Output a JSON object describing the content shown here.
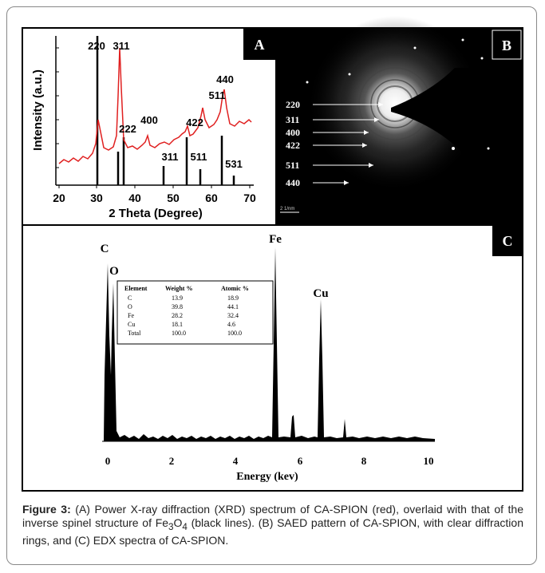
{
  "figure": {
    "panel_a": {
      "label": "A",
      "y_label": "Intensity (a.u.)",
      "x_label": "2 Theta (Degree)",
      "x_ticks": [
        "20",
        "30",
        "40",
        "50",
        "60",
        "70"
      ],
      "peak_labels": [
        "220",
        "311",
        "222",
        "400",
        "311",
        "422",
        "511",
        "511",
        "440",
        "531"
      ]
    },
    "panel_b": {
      "label": "B",
      "ring_labels": [
        "220",
        "311",
        "400",
        "422",
        "511",
        "440"
      ],
      "scale_bar": "2 1/nm"
    },
    "panel_c": {
      "label": "C",
      "x_label": "Energy (kev)",
      "x_ticks": [
        "0",
        "2",
        "4",
        "6",
        "8",
        "10"
      ],
      "peak_labels": [
        "C",
        "O",
        "Fe",
        "Cu"
      ],
      "table": {
        "header": [
          "Element",
          "Weight %",
          "Atomic %"
        ],
        "rows": [
          [
            "C",
            "13.9",
            "18.9"
          ],
          [
            "O",
            "39.8",
            "44.1"
          ],
          [
            "Fe",
            "28.2",
            "32.4"
          ],
          [
            "Cu",
            "18.1",
            "4.6"
          ],
          [
            "Total",
            "100.0",
            "100.0"
          ]
        ]
      }
    },
    "caption": {
      "prefix": "Figure 3:",
      "text_1": " (A) Power X-ray diffraction (XRD) spectrum of CA-SPION (red), overlaid with that of the inverse spinel structure of Fe",
      "sub_1": "3",
      "text_2": "O",
      "sub_2": "4",
      "text_3": " (black lines). (B) SAED pattern of CA-SPION, with clear diffraction rings, and (C) EDX spectra of CA-SPION."
    }
  }
}
